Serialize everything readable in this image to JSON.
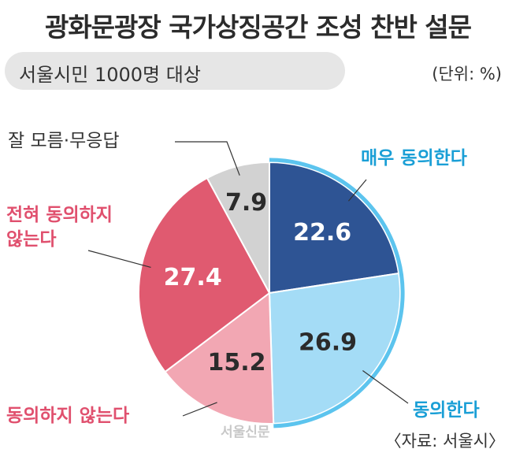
{
  "header": {
    "title": "광화문광장 국가상징공간 조성 찬반 설문",
    "subtitle": "서울시민 1000명 대상",
    "unit": "(단위: %)"
  },
  "footer": {
    "source": "〈자료: 서울시〉",
    "watermark": "서울신문"
  },
  "chart_data": {
    "type": "pie",
    "title": "광화문광장 국가상징공간 조성 찬반 설문",
    "unit": "%",
    "slices": [
      {
        "label": "매우 동의한다",
        "value": 22.6,
        "display": "22.6",
        "color": "#2e5494",
        "label_color": "#1a9fd6"
      },
      {
        "label": "동의한다",
        "value": 26.9,
        "display": "26.9",
        "color": "#a4dcf6",
        "label_color": "#1a9fd6"
      },
      {
        "label": "동의하지 않는다",
        "value": 15.2,
        "display": "15.2",
        "color": "#f2a7b3",
        "label_color": "#e0506e"
      },
      {
        "label": "전혀 동의하지 않는다",
        "value": 27.4,
        "display": "27.4",
        "color": "#e05a70",
        "label_color": "#e0506e"
      },
      {
        "label": "잘 모름·무응답",
        "value": 7.9,
        "display": "7.9",
        "color": "#d2d2d2",
        "label_color": "#333333"
      }
    ]
  },
  "labels": {
    "very_agree": "매우 동의한다",
    "agree": "동의한다",
    "disagree": "동의하지 않는다",
    "strongly_disagree_line1": "전혀 동의하지",
    "strongly_disagree_line2": "않는다",
    "dont_know": "잘 모름·무응답"
  }
}
